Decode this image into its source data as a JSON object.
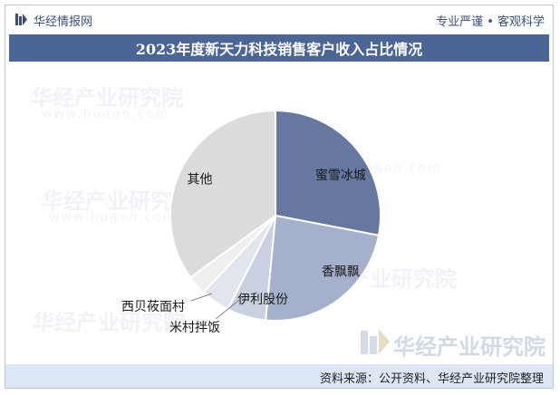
{
  "header": {
    "brand": "华经情报网",
    "slogan": "专业严谨 • 客观科学"
  },
  "watermark": {
    "text": "华经产业研究院",
    "domain": "www.huaon.com"
  },
  "footer": {
    "source": "资料来源：公开资料、华经产业研究院整理"
  },
  "chart_data": {
    "type": "pie",
    "title": "2023年度新天力科技销售客户收入占比情况",
    "slices": [
      {
        "name": "蜜雪冰城",
        "value": 28,
        "color": "#66789f"
      },
      {
        "name": "香飘飘",
        "value": 23.5,
        "color": "#a5b1cc"
      },
      {
        "name": "伊利股份",
        "value": 6,
        "color": "#c9d0e1"
      },
      {
        "name": "米村拌饭",
        "value": 4.5,
        "color": "#e3e5ec"
      },
      {
        "name": "西贝莜面村",
        "value": 3,
        "color": "#efefef"
      },
      {
        "name": "其他",
        "value": 35,
        "color": "#dbdbdb"
      }
    ]
  }
}
